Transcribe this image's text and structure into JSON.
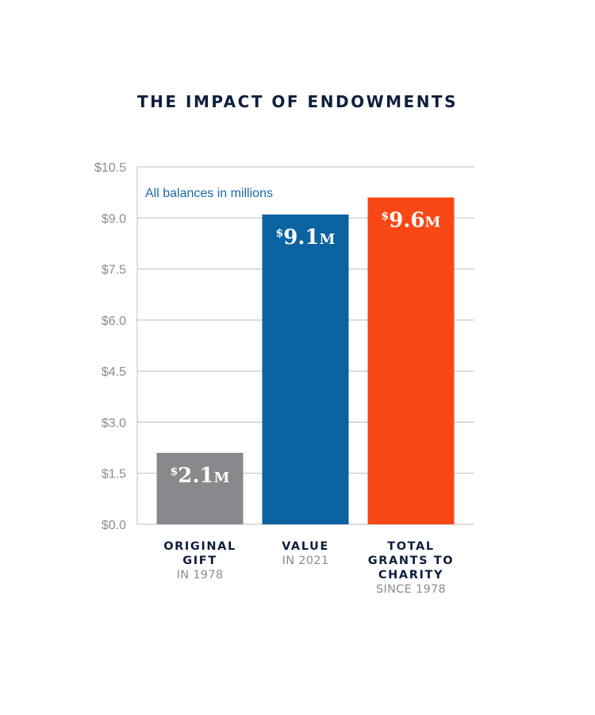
{
  "chart_data": {
    "type": "bar",
    "title": "THE IMPACT OF ENDOWMENTS",
    "annotation": "All balances in millions",
    "categories": [
      "ORIGINAL GIFT",
      "VALUE",
      "TOTAL GRANTS TO CHARITY"
    ],
    "sublabels": [
      "IN 1978",
      "IN 2021",
      "SINCE 1978"
    ],
    "values": [
      2.1,
      9.1,
      9.6
    ],
    "value_labels": [
      "2.1",
      "9.1",
      "9.6"
    ],
    "value_prefix": "$",
    "value_suffix": "M",
    "ylim": [
      0,
      10.5
    ],
    "yticks": [
      0,
      1.5,
      3.0,
      4.5,
      6.0,
      7.5,
      9.0,
      10.5
    ],
    "ytick_labels": [
      "$0.0",
      "$1.5",
      "$3.0",
      "$4.5",
      "$6.0",
      "$7.5",
      "$9.0",
      "$10.5"
    ],
    "grid": true,
    "xlabel": "",
    "ylabel": "",
    "colors": [
      "#88898d",
      "#0b63a1",
      "#f94816"
    ],
    "grid_color": "#bdbdbd",
    "tick_color": "#8a8c90",
    "annotation_color": "#1b6aa5"
  }
}
